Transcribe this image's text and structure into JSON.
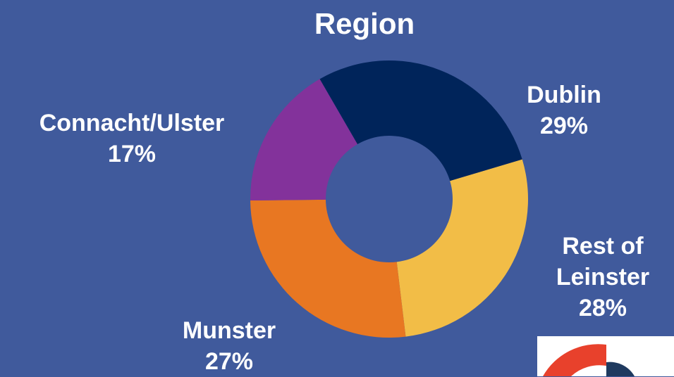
{
  "chart_data": {
    "type": "donut",
    "title": "Region",
    "categories": [
      "Dublin",
      "Rest of Leinster",
      "Munster",
      "Connacht/Ulster"
    ],
    "values": [
      29,
      28,
      27,
      17
    ],
    "value_labels": [
      "29%",
      "28%",
      "27%",
      "17%"
    ],
    "colors": [
      "#00245a",
      "#f2bd47",
      "#e87722",
      "#83329b"
    ]
  }
}
